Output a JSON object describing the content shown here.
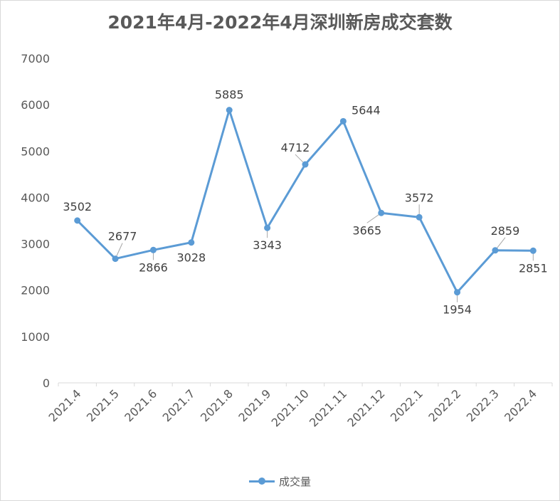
{
  "colors": {
    "series": "#5b9bd5",
    "axis": "#d9d9d9",
    "text": "#595959"
  },
  "chart_data": {
    "type": "line",
    "title": "2021年4月-2022年4月深圳新房成交套数",
    "xlabel": "",
    "ylabel": "",
    "ylim": [
      0,
      7000
    ],
    "yticks": [
      "0",
      "1000",
      "2000",
      "3000",
      "4000",
      "5000",
      "6000",
      "7000"
    ],
    "grid": false,
    "legend": "bottom",
    "categories": [
      "2021.4",
      "2021.5",
      "2021.6",
      "2021.7",
      "2021.8",
      "2021.9",
      "2021.10",
      "2021.11",
      "2021.12",
      "2022.1",
      "2022.2",
      "2022.3",
      "2022.4"
    ],
    "series": [
      {
        "name": "成交量",
        "values": [
          3502,
          2677,
          2866,
          3028,
          5885,
          3343,
          4712,
          5644,
          3665,
          3572,
          1954,
          2859,
          2851
        ]
      }
    ]
  }
}
